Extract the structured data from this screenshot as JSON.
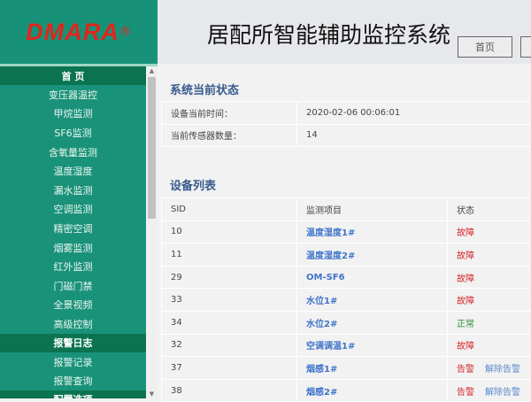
{
  "logo": {
    "text": "DMARA",
    "mark": "®"
  },
  "header": {
    "title": "居配所智能辅助监控系统",
    "buttons": [
      "首页",
      ""
    ]
  },
  "sidebar": {
    "groups": [
      {
        "title": "首 页",
        "items": [
          "变压器温控",
          "甲烷监测",
          "SF6监测",
          "含氧量监测",
          "温度湿度",
          "漏水监测",
          "空调监测",
          "精密空调",
          "烟雾监测",
          "红外监测",
          "门磁门禁",
          "全景视频",
          "高级控制"
        ]
      },
      {
        "title": "报警日志",
        "items": [
          "报警记录",
          "报警查询"
        ]
      },
      {
        "title": "配置选项",
        "items": []
      }
    ]
  },
  "status": {
    "title": "系统当前状态",
    "rows": [
      {
        "label": "设备当前时间：",
        "value": "2020-02-06 00:06:01"
      },
      {
        "label": "当前传感器数量：",
        "value": "14"
      }
    ]
  },
  "devices": {
    "title": "设备列表",
    "headers": [
      "SID",
      "监测项目",
      "状态"
    ],
    "rows": [
      {
        "sid": "10",
        "item": "温度湿度1#",
        "status": "故障",
        "type": "bad"
      },
      {
        "sid": "11",
        "item": "温度湿度2#",
        "status": "故障",
        "type": "bad"
      },
      {
        "sid": "29",
        "item": "OM-SF6",
        "status": "故障",
        "type": "bad"
      },
      {
        "sid": "33",
        "item": "水位1#",
        "status": "故障",
        "type": "bad"
      },
      {
        "sid": "34",
        "item": "水位2#",
        "status": "正常",
        "type": "ok"
      },
      {
        "sid": "32",
        "item": "空调调温1#",
        "status": "故障",
        "type": "bad"
      },
      {
        "sid": "37",
        "item": "烟感1#",
        "status": "告警",
        "type": "bad",
        "action": "解除告警"
      },
      {
        "sid": "38",
        "item": "烟感2#",
        "status": "告警",
        "type": "bad",
        "action": "解除告警"
      }
    ]
  },
  "colors": {
    "sidebar": "#1a9279",
    "sidebar_header": "#0b7350",
    "fault": "#d4262a",
    "normal": "#2f8a2f",
    "link": "#3f74c9"
  }
}
